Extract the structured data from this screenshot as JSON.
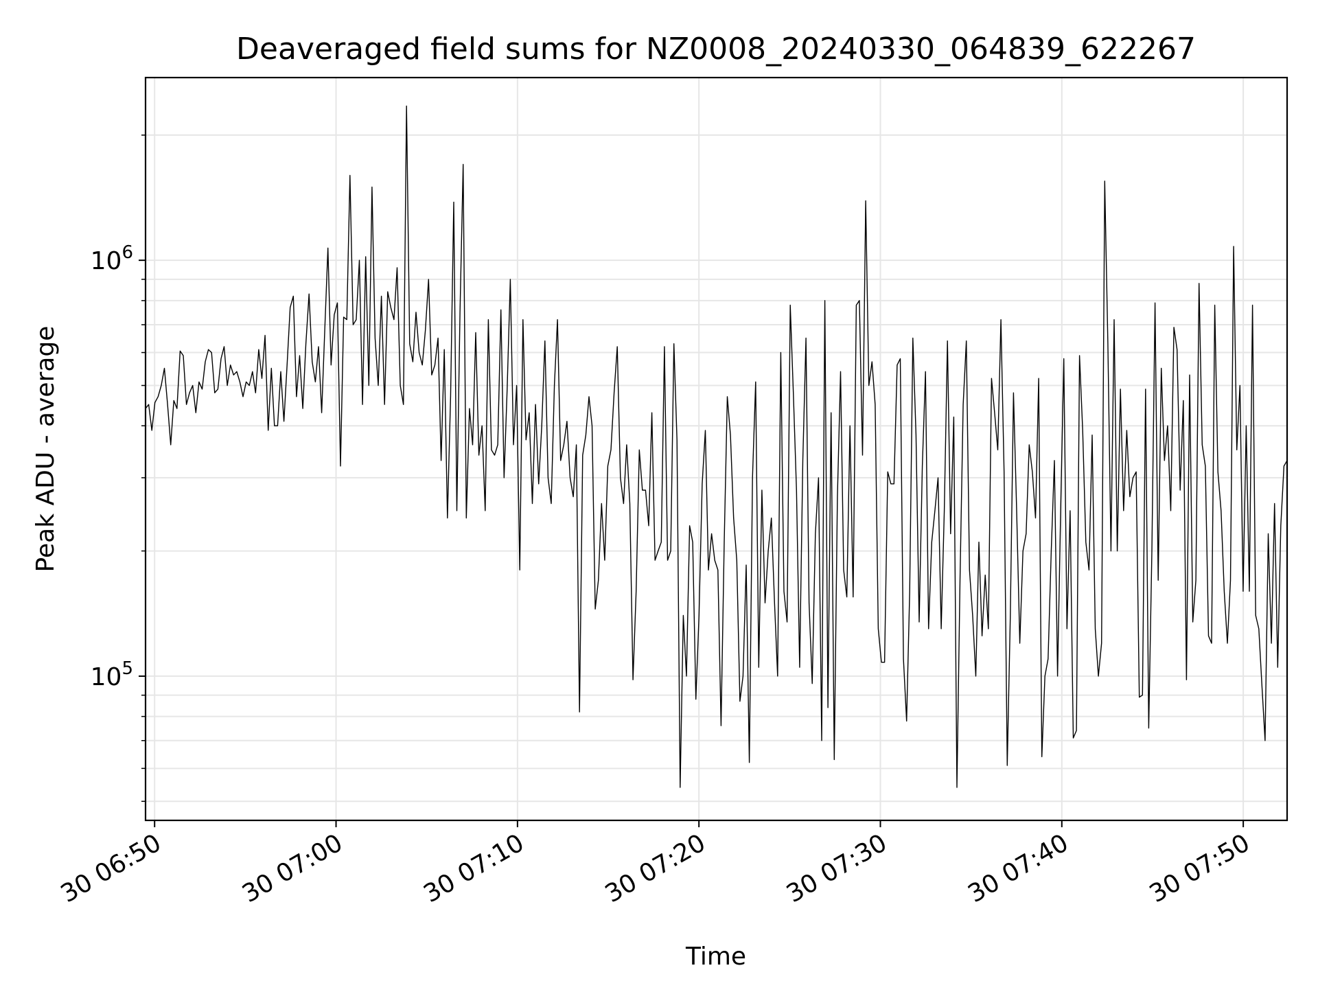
{
  "chart_data": {
    "type": "line",
    "title": "Deaveraged field sums for NZ0008_20240330_064839_622267",
    "xlabel": "Time",
    "ylabel": "Peak ADU - average",
    "yscale": "log",
    "grid": true,
    "x_ticks": [
      "30 06:50",
      "30 07:00",
      "30 07:10",
      "30 07:20",
      "30 07:30",
      "30 07:40",
      "30 07:50"
    ],
    "y_ticks": [
      {
        "base": "10",
        "exp": "5",
        "value": 100000
      },
      {
        "base": "10",
        "exp": "6",
        "value": 1000000
      }
    ],
    "xlim": [
      "2024-03-30T06:49:30",
      "2024-03-30T07:52:25"
    ],
    "ylim": [
      45000,
      2750000
    ],
    "series": [
      {
        "color": "#000000",
        "start": "2024-03-30T06:49:30",
        "end": "2024-03-30T07:52:25",
        "values": [
          440000,
          450000,
          390000,
          455000,
          470000,
          500000,
          550000,
          450000,
          360000,
          460000,
          440000,
          605000,
          590000,
          450000,
          480000,
          500000,
          430000,
          510000,
          490000,
          570000,
          610000,
          600000,
          480000,
          490000,
          580000,
          620000,
          500000,
          560000,
          530000,
          540000,
          510000,
          470000,
          510000,
          500000,
          540000,
          480000,
          610000,
          520000,
          660000,
          390000,
          550000,
          400000,
          400000,
          540000,
          410000,
          560000,
          770000,
          820000,
          470000,
          590000,
          440000,
          630000,
          830000,
          570000,
          510000,
          620000,
          430000,
          680000,
          1070000,
          560000,
          740000,
          790000,
          320000,
          730000,
          720000,
          1600000,
          700000,
          720000,
          1000000,
          450000,
          1020000,
          500000,
          1500000,
          650000,
          500000,
          820000,
          450000,
          840000,
          770000,
          720000,
          960000,
          500000,
          450000,
          2350000,
          630000,
          570000,
          750000,
          600000,
          560000,
          680000,
          900000,
          530000,
          560000,
          650000,
          330000,
          610000,
          240000,
          470000,
          1380000,
          250000,
          750000,
          1700000,
          240000,
          440000,
          360000,
          670000,
          340000,
          400000,
          250000,
          720000,
          350000,
          340000,
          360000,
          760000,
          300000,
          490000,
          900000,
          360000,
          500000,
          180000,
          720000,
          370000,
          430000,
          260000,
          450000,
          290000,
          400000,
          640000,
          300000,
          260000,
          500000,
          720000,
          330000,
          360000,
          410000,
          300000,
          270000,
          360000,
          82000,
          340000,
          380000,
          470000,
          400000,
          145000,
          170000,
          260000,
          190000,
          320000,
          350000,
          480000,
          620000,
          300000,
          260000,
          360000,
          260000,
          98000,
          160000,
          350000,
          280000,
          280000,
          230000,
          430000,
          190000,
          200000,
          210000,
          620000,
          190000,
          200000,
          630000,
          370000,
          54000,
          140000,
          100000,
          230000,
          210000,
          88000,
          140000,
          290000,
          390000,
          180000,
          220000,
          190000,
          180000,
          76000,
          210000,
          470000,
          380000,
          240000,
          190000,
          87000,
          100000,
          185000,
          62000,
          300000,
          510000,
          105000,
          280000,
          150000,
          200000,
          240000,
          150000,
          100000,
          600000,
          160000,
          135000,
          780000,
          480000,
          280000,
          105000,
          330000,
          650000,
          150000,
          96000,
          220000,
          300000,
          70000,
          800000,
          84000,
          430000,
          63000,
          270000,
          540000,
          180000,
          155000,
          400000,
          155000,
          780000,
          800000,
          340000,
          1390000,
          500000,
          570000,
          450000,
          130000,
          108000,
          108000,
          310000,
          290000,
          290000,
          560000,
          580000,
          110000,
          78000,
          160000,
          650000,
          380000,
          135000,
          320000,
          540000,
          130000,
          210000,
          250000,
          300000,
          130000,
          250000,
          640000,
          220000,
          420000,
          54000,
          170000,
          450000,
          640000,
          180000,
          140000,
          100000,
          210000,
          125000,
          175000,
          130000,
          520000,
          430000,
          350000,
          720000,
          310000,
          61000,
          140000,
          480000,
          250000,
          120000,
          200000,
          220000,
          360000,
          310000,
          240000,
          520000,
          64000,
          100000,
          110000,
          200000,
          330000,
          100000,
          250000,
          580000,
          130000,
          250000,
          71000,
          74000,
          590000,
          390000,
          210000,
          180000,
          380000,
          130000,
          100000,
          120000,
          1550000,
          630000,
          200000,
          720000,
          200000,
          490000,
          250000,
          390000,
          270000,
          300000,
          310000,
          89000,
          90000,
          490000,
          75000,
          200000,
          790000,
          170000,
          550000,
          330000,
          400000,
          250000,
          690000,
          610000,
          280000,
          460000,
          98000,
          530000,
          135000,
          170000,
          880000,
          360000,
          320000,
          125000,
          120000,
          780000,
          310000,
          250000,
          160000,
          120000,
          170000,
          1080000,
          350000,
          500000,
          160000,
          400000,
          160000,
          780000,
          140000,
          130000,
          95000,
          70000,
          220000,
          120000,
          260000,
          105000,
          230000,
          320000,
          330000
        ]
      }
    ]
  }
}
